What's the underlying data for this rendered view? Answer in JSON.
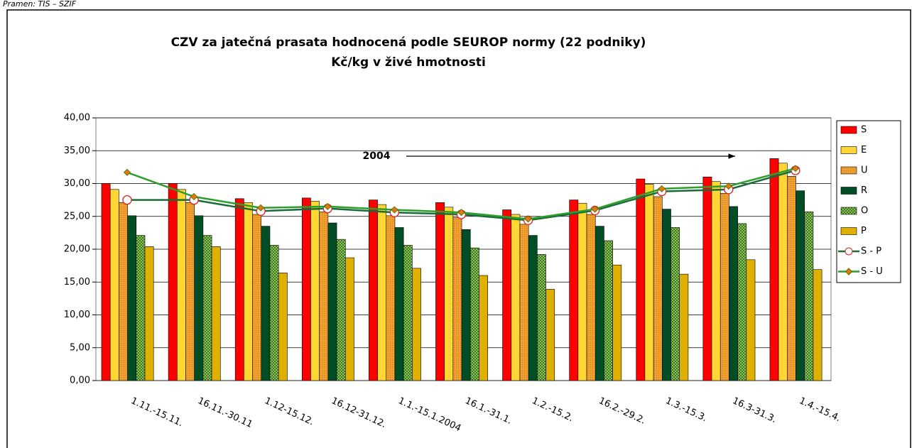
{
  "source": "Pramen: TIS – SZIF",
  "chart_data": {
    "type": "bar_line",
    "title": "CZV za jatečná prasata hodnocená podle SEUROP normy  (22 podniky)",
    "subtitle": "Kč/kg v živé hmotnosti",
    "annotation": "2004",
    "categories": [
      "1.11.-15.11.",
      "16.11.-30.11",
      "1.12-15.12.",
      "16.12-31.12.",
      "1.1.-15.1.2004",
      "16.1.-31.1.",
      "1.2.-15.2.",
      "16.2.-29.2.",
      "1.3.-15.3.",
      "16.3-31.3.",
      "1.4.-15.4."
    ],
    "series": [
      {
        "name": "S",
        "color": "#ff0000",
        "kind": "bar",
        "values": [
          30.0,
          30.0,
          27.7,
          27.8,
          27.5,
          27.1,
          26.0,
          27.5,
          30.7,
          31.0,
          33.8
        ]
      },
      {
        "name": "E",
        "color": "#ffd633",
        "kind": "bar",
        "values": [
          29.1,
          29.1,
          27.1,
          27.3,
          26.8,
          26.4,
          25.3,
          27.0,
          29.9,
          30.3,
          33.1
        ]
      },
      {
        "name": "U",
        "color": "#f0a030",
        "kind": "bar",
        "values": [
          27.1,
          27.1,
          25.3,
          25.7,
          25.1,
          24.8,
          23.8,
          25.3,
          28.0,
          28.5,
          31.1
        ]
      },
      {
        "name": "R",
        "color": "#004d26",
        "kind": "bar",
        "values": [
          25.1,
          25.1,
          23.5,
          24.0,
          23.3,
          23.0,
          22.1,
          23.5,
          26.1,
          26.5,
          28.9
        ]
      },
      {
        "name": "O",
        "color": "#4d8a2a",
        "kind": "bar",
        "values": [
          22.1,
          22.1,
          20.6,
          21.5,
          20.6,
          20.2,
          19.2,
          21.3,
          23.3,
          23.9,
          25.7
        ]
      },
      {
        "name": "P",
        "color": "#e0b000",
        "kind": "bar",
        "values": [
          20.4,
          20.4,
          16.4,
          18.7,
          17.1,
          16.0,
          13.9,
          17.6,
          16.2,
          18.4,
          16.9
        ]
      },
      {
        "name": "S - P",
        "color": "#1a6b3a",
        "kind": "line",
        "values": [
          27.5,
          27.5,
          25.8,
          26.2,
          25.6,
          25.3,
          24.4,
          25.9,
          28.8,
          29.1,
          32.0
        ]
      },
      {
        "name": "S - U",
        "color": "#2c9e2c",
        "kind": "line",
        "values": [
          31.7,
          28.0,
          26.3,
          26.5,
          26.0,
          25.6,
          24.6,
          26.1,
          29.2,
          29.6,
          32.3
        ]
      }
    ],
    "ylim": [
      0,
      40
    ],
    "yticks": [
      {
        "value": 0,
        "label": "0,00"
      },
      {
        "value": 5,
        "label": "5,00"
      },
      {
        "value": 10,
        "label": "10,00"
      },
      {
        "value": 15,
        "label": "15,00"
      },
      {
        "value": 20,
        "label": "20,00"
      },
      {
        "value": 25,
        "label": "25,00"
      },
      {
        "value": 30,
        "label": "30,00"
      },
      {
        "value": 35,
        "label": "35,00"
      },
      {
        "value": 40,
        "label": "40,00"
      }
    ],
    "grid": true,
    "legend": "right"
  }
}
